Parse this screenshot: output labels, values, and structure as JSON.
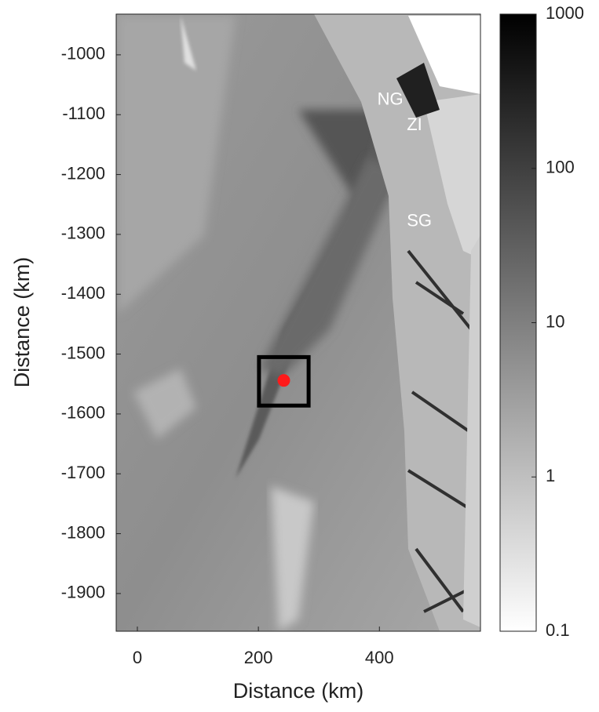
{
  "chart_data": {
    "type": "image",
    "xlabel": "Distance (km)",
    "ylabel": "Distance (km)",
    "xlim": [
      -35,
      567
    ],
    "ylim": [
      -1963,
      -932
    ],
    "xticks": [
      0,
      200,
      400
    ],
    "yticks": [
      -1000,
      -1100,
      -1200,
      -1300,
      -1400,
      -1500,
      -1600,
      -1700,
      -1800,
      -1900
    ],
    "colorbar": {
      "scale": "log",
      "lim": [
        0.1,
        1000
      ],
      "ticks": [
        0.1,
        1,
        10,
        100,
        1000
      ]
    },
    "annotations": [
      {
        "text": "NG",
        "x": 418,
        "y": -1076
      },
      {
        "text": "ZI",
        "x": 458,
        "y": -1118
      },
      {
        "text": "SG",
        "x": 466,
        "y": -1279
      }
    ],
    "box": {
      "x": [
        201,
        283
      ],
      "y": [
        -1505,
        -1586
      ]
    },
    "point": {
      "x": 242,
      "y": -1544,
      "color": "#ff1a1a"
    }
  }
}
